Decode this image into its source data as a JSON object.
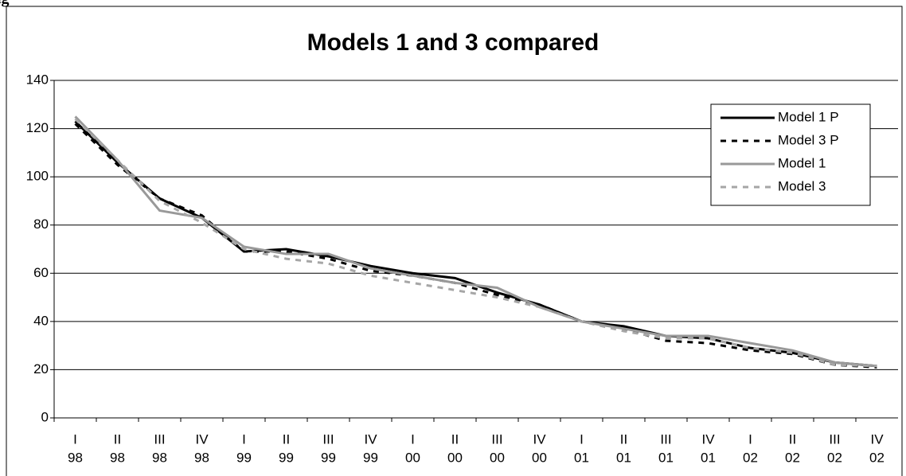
{
  "caption": "ig",
  "chart_data": {
    "type": "line",
    "title": "Models 1 and 3 compared",
    "categories": [
      [
        "I",
        "98"
      ],
      [
        "II",
        "98"
      ],
      [
        "III",
        "98"
      ],
      [
        "IV",
        "98"
      ],
      [
        "I",
        "99"
      ],
      [
        "II",
        "99"
      ],
      [
        "III",
        "99"
      ],
      [
        "IV",
        "99"
      ],
      [
        "I",
        "00"
      ],
      [
        "II",
        "00"
      ],
      [
        "III",
        "00"
      ],
      [
        "IV",
        "00"
      ],
      [
        "I",
        "01"
      ],
      [
        "II",
        "01"
      ],
      [
        "III",
        "01"
      ],
      [
        "IV",
        "01"
      ],
      [
        "I",
        "02"
      ],
      [
        "II",
        "02"
      ],
      [
        "III",
        "02"
      ],
      [
        "IV",
        "02"
      ]
    ],
    "series": [
      {
        "name": "Model 1 P",
        "color": "#000000",
        "dash": false,
        "values": [
          123,
          106,
          91,
          83,
          69,
          70,
          67,
          63,
          60,
          58,
          52,
          47,
          40,
          38,
          34,
          33,
          29,
          27,
          23,
          21.5
        ]
      },
      {
        "name": "Model 3 P",
        "color": "#000000",
        "dash": true,
        "values": [
          122,
          105,
          91,
          84,
          69,
          69,
          66,
          61,
          59,
          56,
          51,
          47,
          40,
          37,
          32,
          31,
          28,
          26.5,
          22,
          21
        ]
      },
      {
        "name": "Model 1",
        "color": "#999999",
        "dash": false,
        "values": [
          125,
          107,
          86,
          83,
          71,
          68,
          68,
          62,
          59,
          56,
          54,
          46,
          40,
          37,
          34,
          34,
          31,
          28,
          23,
          21.5
        ]
      },
      {
        "name": "Model 3",
        "color": "#a6a6a6",
        "dash": true,
        "values": [
          124,
          107,
          90,
          81,
          70,
          66,
          64,
          59,
          56,
          53,
          50,
          46,
          40,
          36,
          33,
          33,
          29,
          27,
          22,
          21.5
        ]
      }
    ],
    "ylim": [
      0,
      140
    ],
    "yticks": [
      0,
      20,
      40,
      60,
      80,
      100,
      120,
      140
    ],
    "grid": true,
    "legend": "top-right"
  }
}
